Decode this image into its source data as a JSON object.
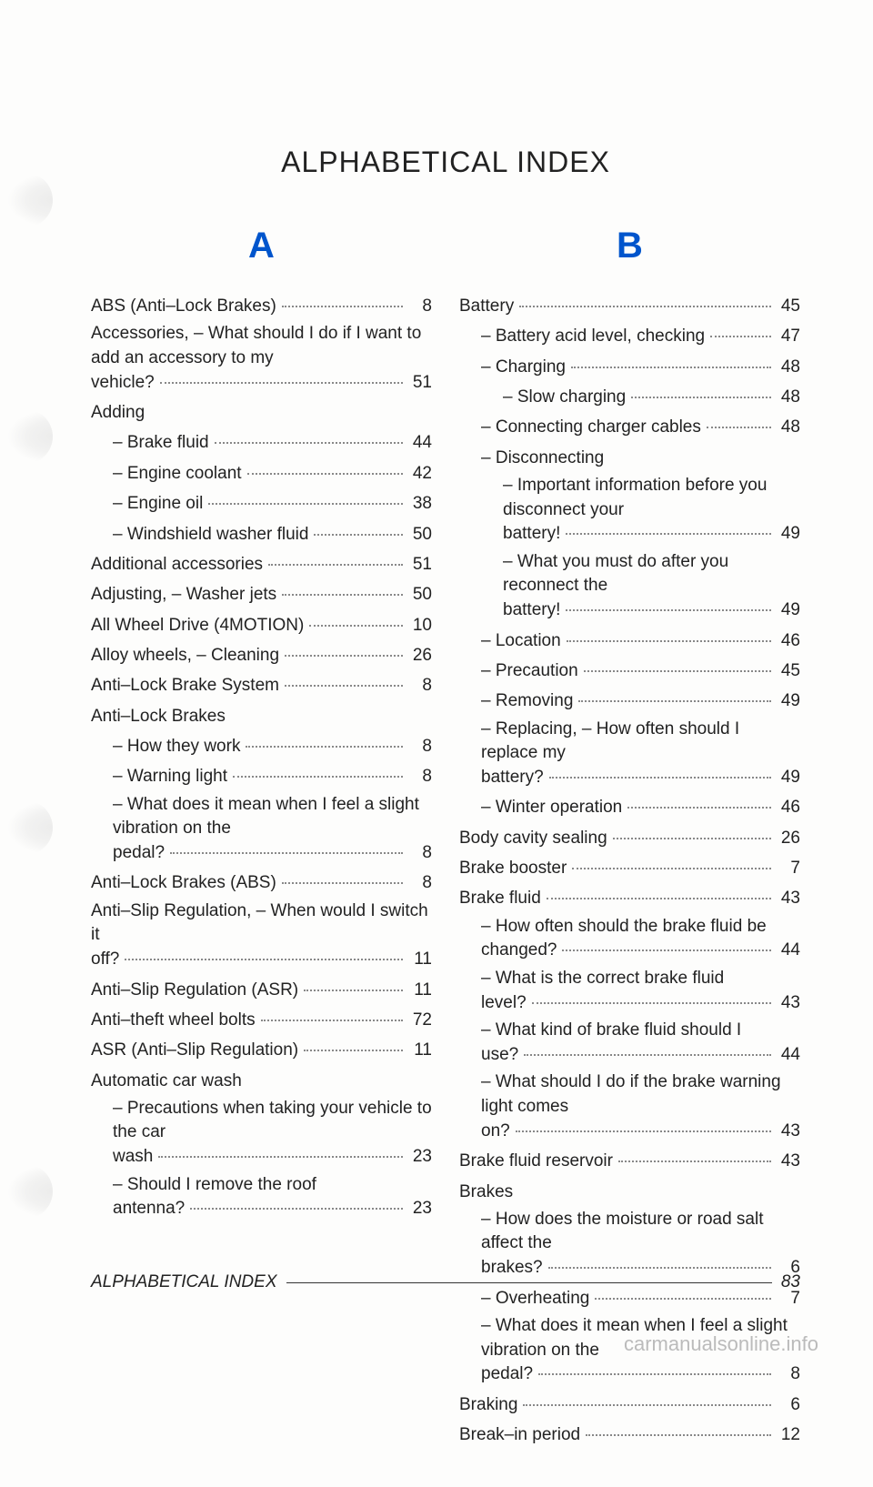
{
  "title": "ALPHABETICAL INDEX",
  "letters": {
    "A": "A",
    "B": "B"
  },
  "A": [
    {
      "t": "entry",
      "label": "ABS (Anti–Lock Brakes)",
      "pg": "8"
    },
    {
      "t": "multi",
      "label": "Accessories, – What should I do if I want to add an accessory to my vehicle?",
      "pg": "51"
    },
    {
      "t": "group",
      "label": "Adding"
    },
    {
      "t": "entry",
      "indent": 1,
      "label": "– Brake fluid",
      "pg": "44"
    },
    {
      "t": "entry",
      "indent": 1,
      "label": "– Engine coolant",
      "pg": "42"
    },
    {
      "t": "entry",
      "indent": 1,
      "label": "– Engine oil",
      "pg": "38"
    },
    {
      "t": "entry",
      "indent": 1,
      "label": "– Windshield washer fluid",
      "pg": "50"
    },
    {
      "t": "entry",
      "label": "Additional accessories",
      "pg": "51"
    },
    {
      "t": "entry",
      "label": "Adjusting, – Washer jets",
      "pg": "50"
    },
    {
      "t": "entry",
      "label": "All Wheel Drive (4MOTION)",
      "pg": "10"
    },
    {
      "t": "entry",
      "label": "Alloy wheels, – Cleaning",
      "pg": "26"
    },
    {
      "t": "entry",
      "label": "Anti–Lock Brake System",
      "pg": "8"
    },
    {
      "t": "group",
      "label": "Anti–Lock Brakes"
    },
    {
      "t": "entry",
      "indent": 1,
      "label": "– How they work",
      "pg": "8"
    },
    {
      "t": "entry",
      "indent": 1,
      "label": "– Warning light",
      "pg": "8"
    },
    {
      "t": "multi",
      "indent": 1,
      "label": "– What does it mean when I feel a slight vibration on the pedal?",
      "pg": "8"
    },
    {
      "t": "entry",
      "label": "Anti–Lock Brakes (ABS)",
      "pg": "8"
    },
    {
      "t": "multi",
      "label": "Anti–Slip Regulation, – When would I switch it off?",
      "pg": "11"
    },
    {
      "t": "entry",
      "label": "Anti–Slip Regulation (ASR)",
      "pg": "11"
    },
    {
      "t": "entry",
      "label": "Anti–theft wheel bolts",
      "pg": "72"
    },
    {
      "t": "entry",
      "label": "ASR (Anti–Slip Regulation)",
      "pg": "11"
    },
    {
      "t": "group",
      "label": "Automatic car wash"
    },
    {
      "t": "multi",
      "indent": 1,
      "label": "– Precautions when taking your vehicle to the car wash",
      "pg": "23"
    },
    {
      "t": "multi",
      "indent": 1,
      "label": "– Should I remove the roof antenna?",
      "pg": "23"
    }
  ],
  "B": [
    {
      "t": "entry",
      "label": "Battery",
      "pg": "45"
    },
    {
      "t": "entry",
      "indent": 1,
      "label": "– Battery acid level, checking",
      "pg": "47"
    },
    {
      "t": "entry",
      "indent": 1,
      "label": "– Charging",
      "pg": "48"
    },
    {
      "t": "entry",
      "indent": 2,
      "label": "– Slow charging",
      "pg": "48"
    },
    {
      "t": "entry",
      "indent": 1,
      "label": "– Connecting charger cables",
      "pg": "48"
    },
    {
      "t": "group",
      "indent": 1,
      "label": "– Disconnecting"
    },
    {
      "t": "multi",
      "indent": 2,
      "label": "– Important information before you disconnect your battery!",
      "pg": "49"
    },
    {
      "t": "multi",
      "indent": 2,
      "label": "– What you must do after you reconnect the battery!",
      "pg": "49"
    },
    {
      "t": "entry",
      "indent": 1,
      "label": "– Location",
      "pg": "46"
    },
    {
      "t": "entry",
      "indent": 1,
      "label": "– Precaution",
      "pg": "45"
    },
    {
      "t": "entry",
      "indent": 1,
      "label": "– Removing",
      "pg": "49"
    },
    {
      "t": "multi",
      "indent": 1,
      "label": "– Replacing, – How often should I replace my battery?",
      "pg": "49"
    },
    {
      "t": "entry",
      "indent": 1,
      "label": "– Winter operation",
      "pg": "46"
    },
    {
      "t": "entry",
      "label": "Body cavity sealing",
      "pg": "26"
    },
    {
      "t": "entry",
      "label": "Brake booster",
      "pg": "7"
    },
    {
      "t": "entry",
      "label": "Brake fluid",
      "pg": "43"
    },
    {
      "t": "multi",
      "indent": 1,
      "label": "– How often should the brake fluid be changed?",
      "pg": "44"
    },
    {
      "t": "multi",
      "indent": 1,
      "label": "– What is the correct brake fluid level?",
      "pg": "43"
    },
    {
      "t": "multi",
      "indent": 1,
      "label": "– What kind of brake fluid should I use?",
      "pg": "44"
    },
    {
      "t": "multi",
      "indent": 1,
      "label": "– What should I do if the brake warning light comes on?",
      "pg": "43"
    },
    {
      "t": "entry",
      "label": "Brake fluid reservoir",
      "pg": "43"
    },
    {
      "t": "group",
      "label": "Brakes"
    },
    {
      "t": "multi",
      "indent": 1,
      "label": "– How does the moisture or road salt affect the brakes?",
      "pg": "6"
    },
    {
      "t": "entry",
      "indent": 1,
      "label": "– Overheating",
      "pg": "7"
    },
    {
      "t": "multi",
      "indent": 1,
      "label": "– What does it mean when I feel a slight vibration on the pedal?",
      "pg": "8"
    },
    {
      "t": "entry",
      "label": "Braking",
      "pg": "6"
    },
    {
      "t": "entry",
      "label": "Break–in period",
      "pg": "12"
    }
  ],
  "footer": {
    "label": "ALPHABETICAL INDEX",
    "pg": "83"
  },
  "watermark": "carmanualsonline.info"
}
